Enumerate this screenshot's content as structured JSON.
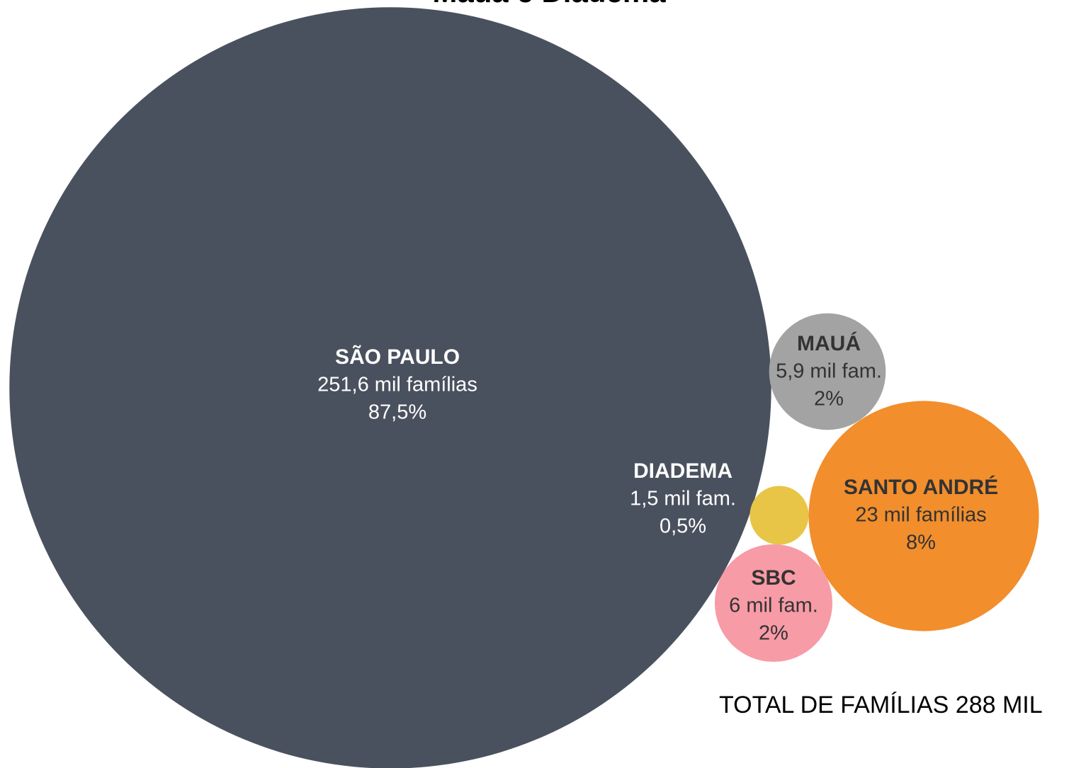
{
  "chart_data": {
    "type": "bubble",
    "title": "Mauá e Diadema",
    "annotation": "TOTAL DE FAMÍLIAS 288 MIL",
    "categories": [
      "SÃO PAULO",
      "MAUÁ",
      "SANTO ANDRÉ",
      "DIADEMA",
      "SBC"
    ],
    "values": [
      251.6,
      5.9,
      23,
      1.5,
      6
    ],
    "value_labels": [
      "251,6 mil famílias",
      "5,9 mil fam.",
      "23 mil famílias",
      "1,5 mil fam.",
      "6 mil fam."
    ],
    "shares": [
      87.5,
      2,
      8,
      0.5,
      2
    ],
    "share_labels": [
      "87,5%",
      "2%",
      "8%",
      "0,5%",
      "2%"
    ],
    "colors": [
      "#4a515e",
      "#a3a3a3",
      "#f28e2c",
      "#e8c547",
      "#f79ba6"
    ]
  }
}
